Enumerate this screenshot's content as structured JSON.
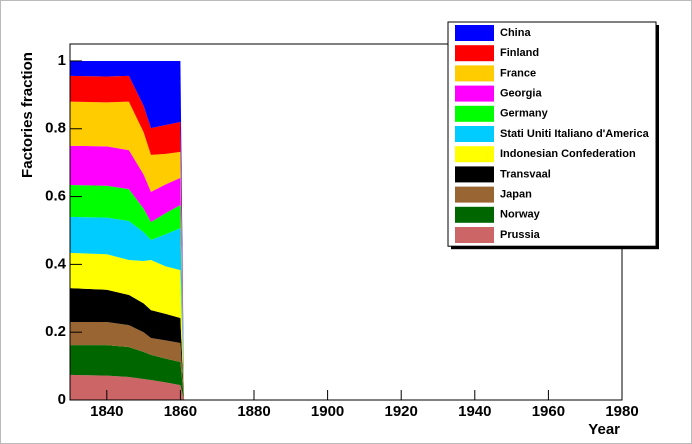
{
  "chart_data": {
    "type": "area",
    "stacked": true,
    "ylabel": "Factories fraction",
    "xlabel": "Year",
    "x": [
      1830,
      1840,
      1846,
      1850,
      1852,
      1856,
      1860,
      1861,
      1980
    ],
    "xlim": [
      1830,
      1980
    ],
    "xticks": [
      1840,
      1860,
      1880,
      1900,
      1920,
      1940,
      1960,
      1980
    ],
    "ylim": [
      0,
      1.05
    ],
    "yticks": [
      0,
      0.2,
      0.4,
      0.6,
      0.8,
      1
    ],
    "legend": "top right",
    "series": [
      {
        "name": "China",
        "color": "#0000ff",
        "values": [
          0.044,
          0.046,
          0.044,
          0.132,
          0.198,
          0.189,
          0.18,
          0,
          0
        ]
      },
      {
        "name": "Finland",
        "color": "#ff0000",
        "values": [
          0.076,
          0.076,
          0.076,
          0.078,
          0.079,
          0.085,
          0.088,
          0,
          0
        ]
      },
      {
        "name": "France",
        "color": "#ffcc00",
        "values": [
          0.13,
          0.13,
          0.143,
          0.125,
          0.109,
          0.09,
          0.077,
          0,
          0
        ]
      },
      {
        "name": "Georgia",
        "color": "#ff00ff",
        "values": [
          0.116,
          0.116,
          0.115,
          0.1,
          0.089,
          0.085,
          0.08,
          0,
          0
        ]
      },
      {
        "name": "Germany",
        "color": "#00ff00",
        "values": [
          0.094,
          0.094,
          0.094,
          0.07,
          0.053,
          0.062,
          0.068,
          0,
          0
        ]
      },
      {
        "name": "Stati Uniti Italiano d'America",
        "color": "#00ccff",
        "values": [
          0.106,
          0.108,
          0.115,
          0.085,
          0.059,
          0.095,
          0.124,
          0,
          0
        ]
      },
      {
        "name": "Indonesian Confederation",
        "color": "#ffff00",
        "values": [
          0.104,
          0.105,
          0.103,
          0.125,
          0.148,
          0.14,
          0.141,
          0,
          0
        ]
      },
      {
        "name": "Transvaal",
        "color": "#000000",
        "values": [
          0.1,
          0.095,
          0.089,
          0.085,
          0.082,
          0.078,
          0.074,
          0,
          0
        ]
      },
      {
        "name": "Japan",
        "color": "#996633",
        "values": [
          0.068,
          0.068,
          0.065,
          0.058,
          0.05,
          0.054,
          0.056,
          0,
          0
        ]
      },
      {
        "name": "Norway",
        "color": "#006600",
        "values": [
          0.088,
          0.09,
          0.088,
          0.08,
          0.074,
          0.07,
          0.068,
          0,
          0
        ]
      },
      {
        "name": "Prussia",
        "color": "#cc6666",
        "values": [
          0.074,
          0.072,
          0.068,
          0.062,
          0.059,
          0.052,
          0.044,
          0,
          0
        ]
      }
    ]
  }
}
